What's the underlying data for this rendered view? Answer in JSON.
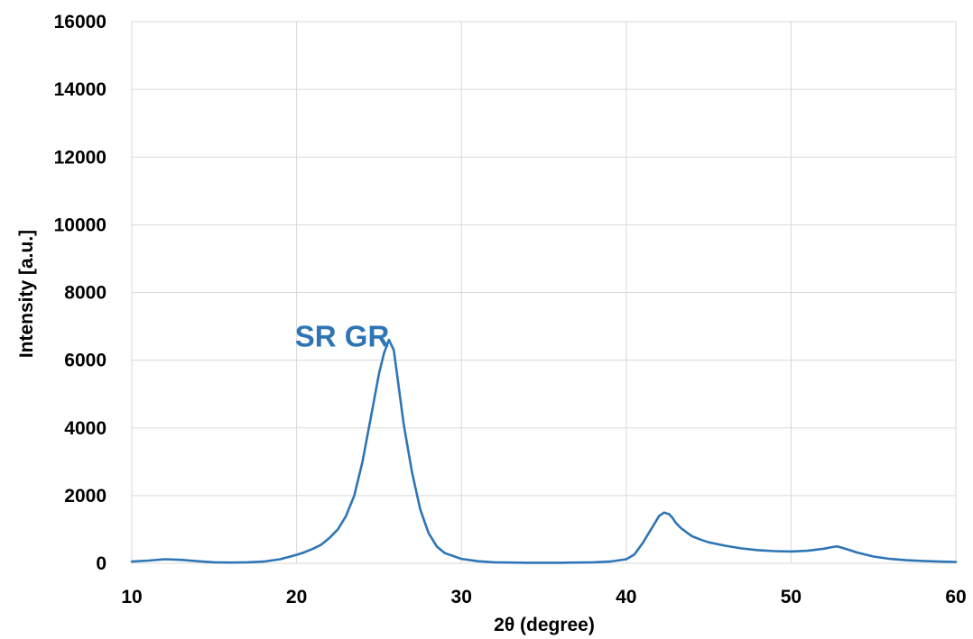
{
  "chart_data": {
    "type": "line",
    "title": "",
    "xlabel": "2θ (degree)",
    "ylabel": "Intensity [a.u.]",
    "xlim": [
      10,
      60
    ],
    "ylim": [
      0,
      16000
    ],
    "x_ticks": [
      "10",
      "20",
      "30",
      "40",
      "50",
      "60"
    ],
    "y_ticks": [
      "0",
      "2000",
      "4000",
      "6000",
      "8000",
      "10000",
      "12000",
      "14000",
      "16000"
    ],
    "grid": "on",
    "legend": "none",
    "annotations": [
      {
        "text": "SR GR",
        "x": 19.9,
        "y": 6400
      }
    ],
    "colors": {
      "series": "#2e75b6",
      "grid": "#d9d9d9"
    },
    "series": [
      {
        "x": [
          10,
          11,
          12,
          13,
          14,
          15,
          16,
          17,
          18,
          19,
          20,
          20.5,
          21,
          21.5,
          22,
          22.5,
          23,
          23.5,
          24,
          24.5,
          25,
          25.3,
          25.6,
          25.9,
          26.2,
          26.5,
          27,
          27.5,
          28,
          28.5,
          29,
          30,
          31,
          32,
          33,
          34,
          35,
          36,
          37,
          38,
          39,
          40,
          40.5,
          41,
          41.5,
          42,
          42.3,
          42.6,
          42.8,
          43,
          43.3,
          43.7,
          44,
          44.5,
          45,
          46,
          47,
          48,
          49,
          50,
          51,
          52,
          52.5,
          52.8,
          53,
          53.5,
          54,
          55,
          56,
          57,
          58,
          59,
          60
        ],
        "y": [
          50,
          80,
          120,
          100,
          60,
          30,
          20,
          30,
          50,
          120,
          250,
          330,
          430,
          550,
          750,
          1000,
          1400,
          2000,
          3000,
          4300,
          5600,
          6200,
          6600,
          6300,
          5200,
          4100,
          2700,
          1600,
          900,
          500,
          300,
          130,
          60,
          30,
          20,
          15,
          15,
          15,
          20,
          30,
          50,
          120,
          260,
          600,
          1000,
          1400,
          1500,
          1450,
          1350,
          1200,
          1050,
          900,
          800,
          700,
          620,
          520,
          440,
          390,
          360,
          350,
          370,
          430,
          480,
          500,
          470,
          400,
          320,
          200,
          130,
          90,
          70,
          50,
          40
        ]
      }
    ]
  }
}
